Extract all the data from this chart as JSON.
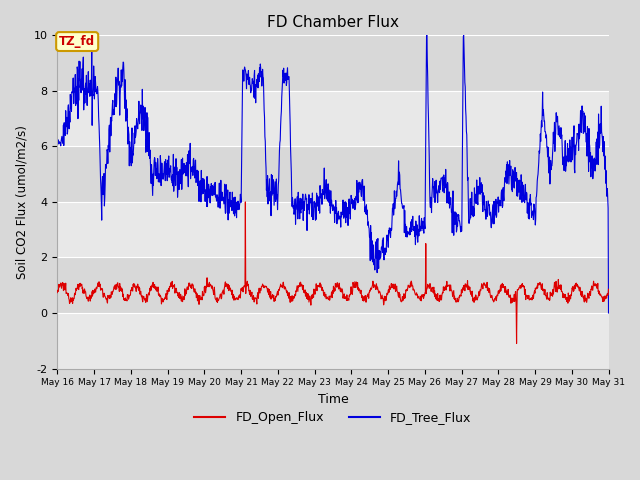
{
  "title": "FD Chamber Flux",
  "xlabel": "Time",
  "ylabel": "Soil CO2 Flux (umol/m2/s)",
  "ylim": [
    -2,
    10
  ],
  "yticks": [
    -2,
    0,
    2,
    4,
    6,
    8,
    10
  ],
  "annotation_text": "TZ_fd",
  "annotation_color": "#cc0000",
  "annotation_bg": "#ffffcc",
  "annotation_border": "#cc9900",
  "fig_bg_color": "#d8d8d8",
  "plot_bg_color": "#e8e8e8",
  "open_flux_color": "#dd0000",
  "tree_flux_color": "#0000dd",
  "legend_labels": [
    "FD_Open_Flux",
    "FD_Tree_Flux"
  ],
  "x_tick_days": [
    16,
    17,
    18,
    19,
    20,
    21,
    22,
    23,
    24,
    25,
    26,
    27,
    28,
    29,
    30,
    31
  ],
  "hband_colors": [
    "#e8e8e8",
    "#d8d8d8"
  ],
  "hband_edges": [
    -2,
    0,
    2,
    4,
    6,
    8,
    10
  ]
}
